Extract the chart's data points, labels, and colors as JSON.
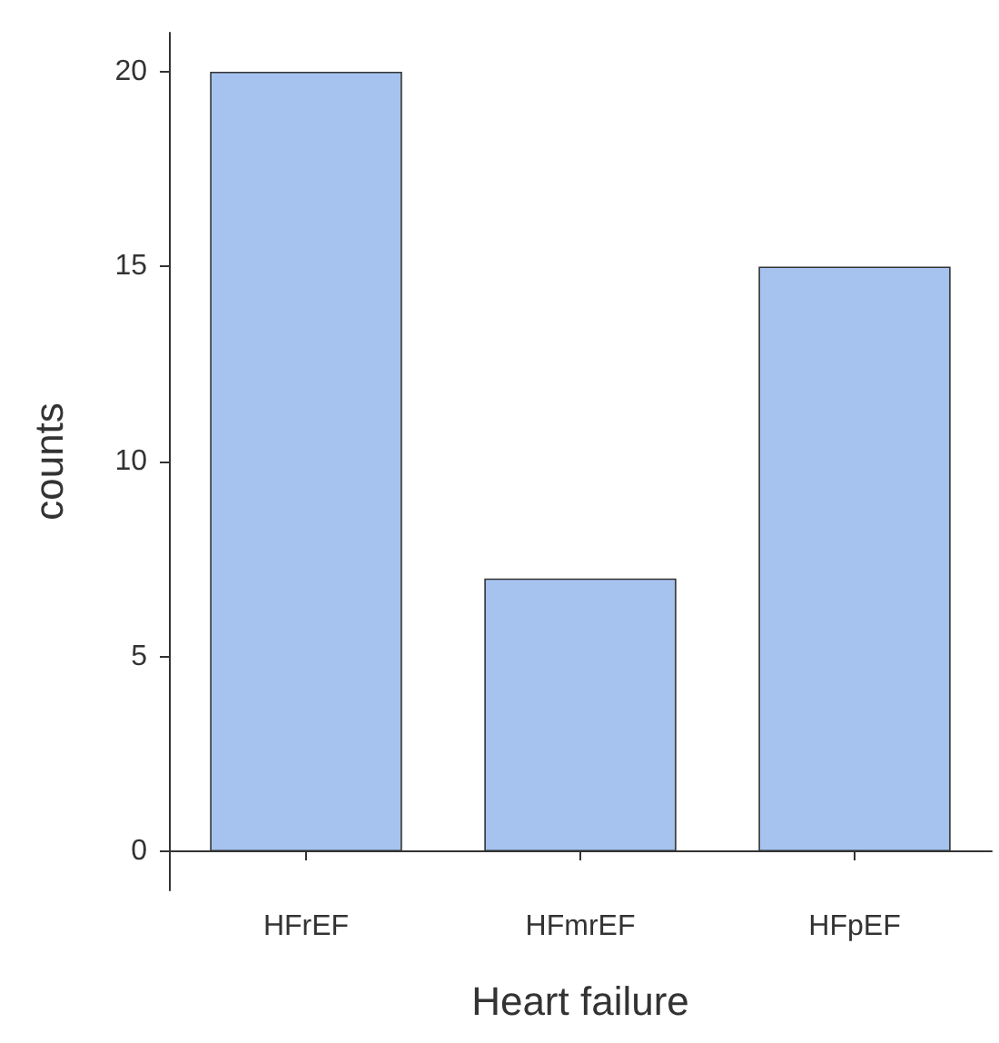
{
  "chart_data": {
    "type": "bar",
    "xlabel": "Heart failure",
    "ylabel": "counts",
    "categories": [
      "HFrEF",
      "HFmrEF",
      "HFpEF"
    ],
    "values": [
      20,
      7,
      15
    ],
    "color": "#a6c3f0",
    "ylim": [
      -1,
      21
    ],
    "yticks": [
      0,
      5,
      10,
      15,
      20
    ],
    "grid": false
  }
}
